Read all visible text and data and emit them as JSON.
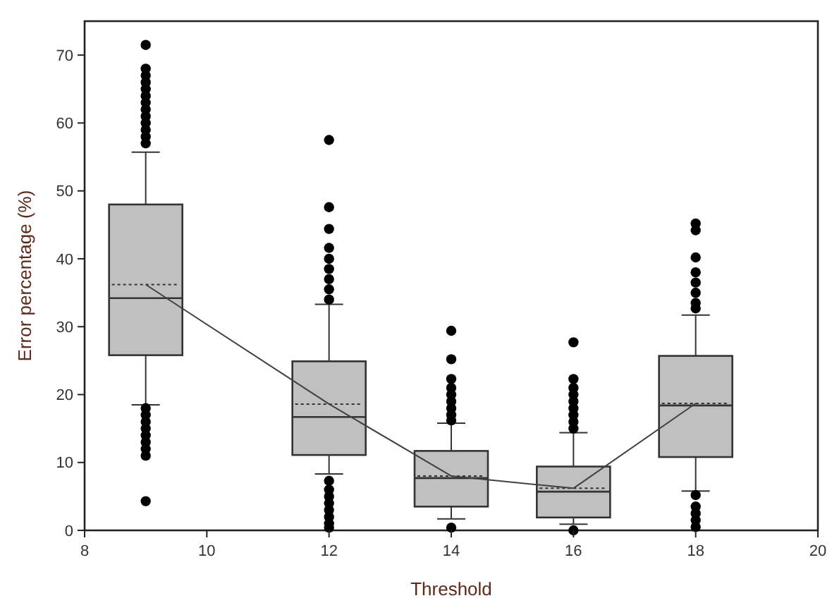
{
  "chart_data": {
    "type": "box",
    "xlabel": "Threshold",
    "ylabel": "Error percentage (%)",
    "x": [
      9,
      12,
      14,
      16,
      18
    ],
    "xlim": [
      8,
      20
    ],
    "xticks": [
      8,
      10,
      12,
      14,
      16,
      18,
      20
    ],
    "ylim": [
      0,
      75
    ],
    "yticks": [
      0,
      10,
      20,
      30,
      40,
      50,
      60,
      70
    ],
    "grid": false,
    "series": [
      {
        "color": "#c0c0c0",
        "boxes": [
          {
            "low": 18.5,
            "q1": 25.8,
            "median": 34.2,
            "q3": 48,
            "high": 55.7,
            "mean": 36.2,
            "outliers": [
              57,
              58,
              59,
              60,
              61,
              62,
              63,
              64,
              65,
              66,
              67,
              68,
              71.5,
              4.3,
              11,
              12,
              13,
              14,
              15,
              16,
              17,
              18
            ]
          },
          {
            "low": 8.3,
            "q1": 11.1,
            "median": 16.7,
            "q3": 24.9,
            "high": 33.3,
            "mean": 18.6,
            "outliers": [
              57.5,
              47.6,
              44.4,
              41.6,
              40,
              38.5,
              37,
              35.5,
              34,
              7.3,
              6,
              5,
              4,
              3,
              2,
              1,
              0.4
            ]
          },
          {
            "low": 1.7,
            "q1": 3.5,
            "median": 7.7,
            "q3": 11.7,
            "high": 15.8,
            "mean": 8,
            "outliers": [
              29.4,
              25.2,
              22.3,
              21,
              20,
              19,
              18,
              17,
              16.2,
              0.4
            ]
          },
          {
            "low": 0.9,
            "q1": 1.9,
            "median": 5.7,
            "q3": 9.4,
            "high": 14.4,
            "mean": 6.2,
            "outliers": [
              27.7,
              22.3,
              21,
              20,
              19,
              18,
              17,
              16,
              15,
              0
            ]
          },
          {
            "low": 5.8,
            "q1": 10.8,
            "median": 18.4,
            "q3": 25.7,
            "high": 31.7,
            "mean": 18.7,
            "outliers": [
              45.2,
              44.2,
              40.2,
              38,
              36.5,
              35,
              33.5,
              32.7,
              5.2,
              3.5,
              2.5,
              1.5,
              0.5
            ]
          }
        ]
      },
      {
        "type": "line",
        "color": "#404040",
        "marker": "none",
        "values": [
          36.2,
          18.6,
          8,
          6.2,
          18.7
        ]
      }
    ]
  }
}
